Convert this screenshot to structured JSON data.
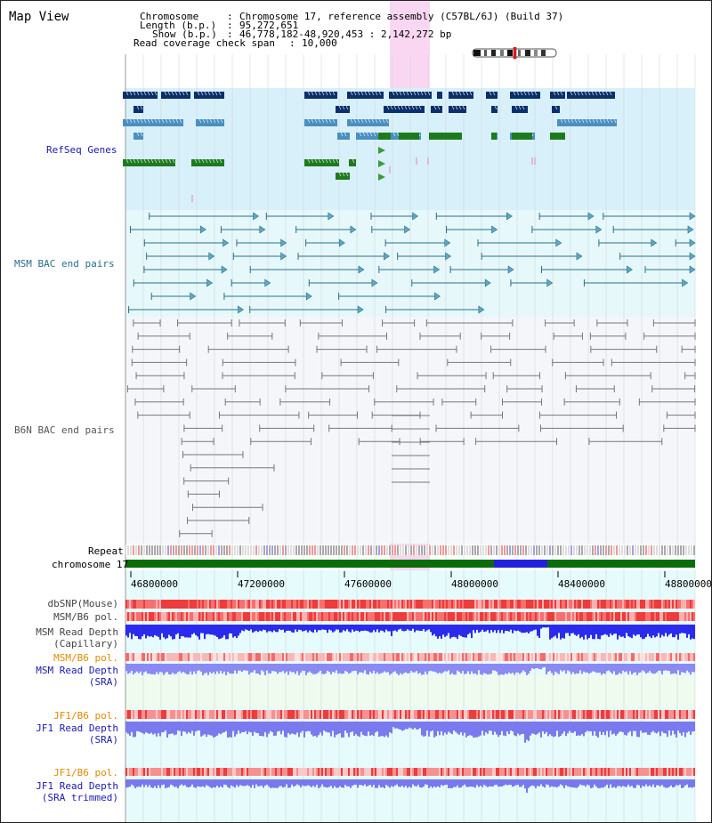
{
  "app": {
    "title": "Map View"
  },
  "header": {
    "chromosome_label": "Chromosome",
    "chromosome_value": "Chromosome 17, reference assembly (C57BL/6J) (Build 37)",
    "length_label": "Length (b.p.)",
    "length_value": "95,272,651",
    "show_label": "Show (b.p.)",
    "show_value": "46,778,182-48,920,453 : 2,142,272 bp",
    "coverage_label": "Read coverage check span",
    "coverage_value": "10,000",
    "sep": ":"
  },
  "tracks": {
    "refseq": "RefSeq Genes",
    "msm_bac": "MSM BAC end pairs",
    "b6n_bac": "B6N BAC end pairs",
    "repeat": "Repeat",
    "chromosome": "chromosome 17",
    "dbsnp": "dbSNP(Mouse)",
    "msm_b6_pol_1": "MSM/B6 pol.",
    "msm_depth_cap_1": "MSM Read Depth",
    "msm_depth_cap_2": "(Capillary)",
    "msm_b6_pol_2": "MSM/B6 pol.",
    "msm_depth_sra_1": "MSM Read Depth",
    "msm_depth_sra_2": "(SRA)",
    "jf1_b6_pol_1": "JF1/B6 pol.",
    "jf1_depth_sra_1": "JF1 Read Depth",
    "jf1_depth_sra_2": "(SRA)",
    "jf1_b6_pol_2": "JF1/B6 pol.",
    "jf1_depth_trim_1": "JF1 Read Depth",
    "jf1_depth_trim_2": "(SRA trimmed)"
  },
  "axis": {
    "ticks": [
      "46800000",
      "47200000",
      "47600000",
      "48000000",
      "48400000",
      "48800000"
    ]
  },
  "colors": {
    "refseq_dark": "#0b2f6b",
    "refseq_mid": "#4a8fc0",
    "refseq_green": "#1e7a1e",
    "msm_bac": "#2a6f8a",
    "b6n_bac": "#777777",
    "chrom_green": "#0a6d0a",
    "chrom_blue": "#2222dd",
    "pol_red": "#ee3333",
    "depth_blue": "#3a3af0",
    "label_blue": "#1a1ab0",
    "label_orange": "#e08a00",
    "label_teal": "#2a6f8a",
    "highlight": "#f7c9ee"
  }
}
